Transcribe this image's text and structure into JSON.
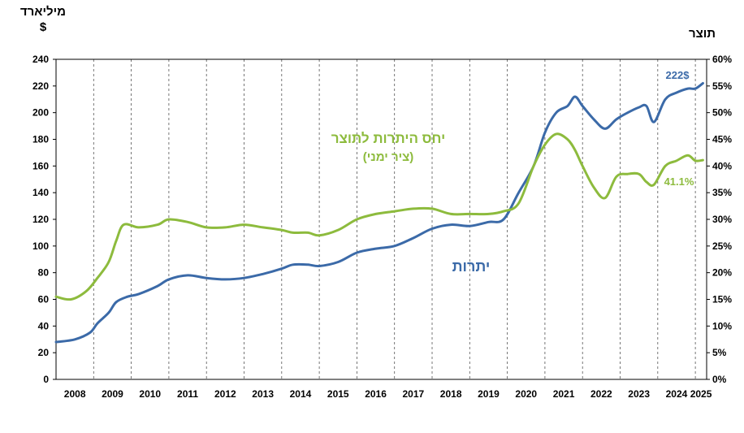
{
  "labels": {
    "left_unit_line1": "מיליארד",
    "left_unit_line2": "$",
    "right_unit": "תוצר"
  },
  "colors": {
    "reserves": "#3b6aa8",
    "ratio": "#8dbb3d"
  },
  "chart_data": {
    "type": "line",
    "x_axis": {
      "type": "year",
      "range": [
        2008,
        2025.3
      ],
      "tick_labels": [
        "2008",
        "2009",
        "2010",
        "2011",
        "2012",
        "2013",
        "2014",
        "2015",
        "2016",
        "2017",
        "2018",
        "2019",
        "2020",
        "2021",
        "2022",
        "2023",
        "2024",
        "2025"
      ]
    },
    "y_left": {
      "range": [
        0,
        240
      ],
      "step": 20,
      "tick_labels": [
        "0",
        "20",
        "40",
        "60",
        "80",
        "100",
        "120",
        "140",
        "160",
        "180",
        "200",
        "220",
        "240"
      ]
    },
    "y_right": {
      "range": [
        0,
        60
      ],
      "step": 5,
      "tick_labels": [
        "0%",
        "5%",
        "10%",
        "15%",
        "20%",
        "25%",
        "30%",
        "35%",
        "40%",
        "45%",
        "50%",
        "55%",
        "60%"
      ]
    },
    "grid": "vertical dashed lines at year boundaries",
    "series": [
      {
        "name": "יתרות",
        "axis": "left",
        "color": "#3b6aa8",
        "x": [
          2008.0,
          2008.5,
          2008.9,
          2009.1,
          2009.4,
          2009.6,
          2009.9,
          2010.2,
          2010.7,
          2011.0,
          2011.5,
          2012.0,
          2012.5,
          2013.0,
          2013.5,
          2014.0,
          2014.3,
          2014.7,
          2015.0,
          2015.5,
          2016.0,
          2016.5,
          2017.0,
          2017.5,
          2018.0,
          2018.5,
          2019.0,
          2019.5,
          2019.9,
          2020.3,
          2020.7,
          2021.0,
          2021.3,
          2021.6,
          2021.8,
          2022.0,
          2022.3,
          2022.6,
          2022.9,
          2023.2,
          2023.5,
          2023.7,
          2023.9,
          2024.2,
          2024.5,
          2024.8,
          2025.0,
          2025.2
        ],
        "y": [
          28,
          30,
          35,
          42,
          50,
          58,
          62,
          64,
          70,
          75,
          78,
          76,
          75,
          76,
          79,
          83,
          86,
          86,
          85,
          88,
          95,
          98,
          100,
          106,
          113,
          116,
          115,
          118,
          120,
          140,
          160,
          185,
          200,
          205,
          212,
          205,
          195,
          188,
          195,
          200,
          204,
          205,
          193,
          210,
          215,
          218,
          218,
          222
        ]
      },
      {
        "name": "יחס היתרות לתוצר",
        "axis": "right",
        "color": "#8dbb3d",
        "x": [
          2008.0,
          2008.4,
          2008.8,
          2009.1,
          2009.4,
          2009.6,
          2009.8,
          2010.2,
          2010.7,
          2011.0,
          2011.5,
          2012.0,
          2012.5,
          2013.0,
          2013.5,
          2014.0,
          2014.3,
          2014.7,
          2015.0,
          2015.5,
          2016.0,
          2016.5,
          2017.0,
          2017.5,
          2018.0,
          2018.5,
          2019.0,
          2019.5,
          2019.9,
          2020.3,
          2020.7,
          2021.0,
          2021.3,
          2021.6,
          2021.8,
          2022.0,
          2022.3,
          2022.6,
          2022.9,
          2023.2,
          2023.5,
          2023.7,
          2023.9,
          2024.2,
          2024.5,
          2024.8,
          2025.0,
          2025.2
        ],
        "y": [
          15.5,
          15,
          16.5,
          19,
          22,
          26,
          29,
          28.5,
          29,
          30,
          29.5,
          28.5,
          28.5,
          29,
          28.5,
          28,
          27.5,
          27.5,
          27,
          28,
          30,
          31,
          31.5,
          32,
          32,
          31,
          31,
          31,
          31.5,
          33,
          40,
          44,
          46,
          45,
          43,
          40,
          36,
          34,
          38,
          38.5,
          38.5,
          37,
          36.5,
          40,
          41,
          42,
          41,
          41.1
        ]
      }
    ],
    "annotations": {
      "ratio_title": "יחס היתרות לתוצר",
      "ratio_subtitle": "(ציר ימני)",
      "reserves_label": "יתרות",
      "last_reserves": "222$",
      "last_ratio": "41.1%"
    }
  }
}
